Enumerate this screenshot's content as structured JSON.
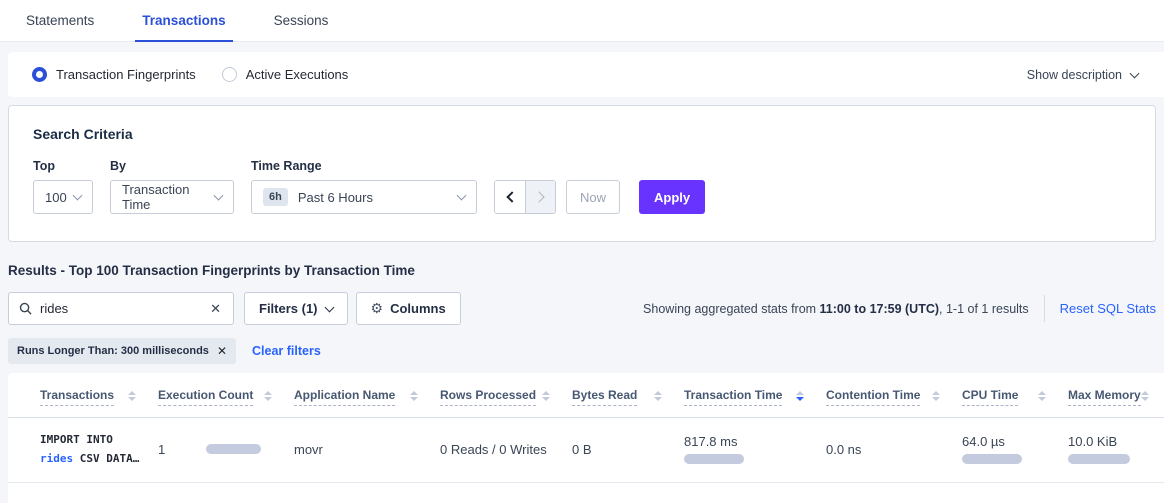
{
  "tabs": {
    "items": [
      {
        "label": "Statements"
      },
      {
        "label": "Transactions"
      },
      {
        "label": "Sessions"
      }
    ],
    "active_index": 1
  },
  "view_toggle": {
    "options": [
      {
        "label": "Transaction Fingerprints",
        "selected": true
      },
      {
        "label": "Active Executions",
        "selected": false
      }
    ],
    "show_description_label": "Show description"
  },
  "search_criteria": {
    "title": "Search Criteria",
    "top_label": "Top",
    "top_value": "100",
    "by_label": "By",
    "by_value": "Transaction Time",
    "time_range_label": "Time Range",
    "time_range_badge": "6h",
    "time_range_value": "Past 6 Hours",
    "now_label": "Now",
    "apply_label": "Apply"
  },
  "results": {
    "title": "Results - Top 100 Transaction Fingerprints by Transaction Time",
    "search_value": "rides",
    "filters_button": "Filters (1)",
    "columns_button": "Columns",
    "stats_prefix": "Showing aggregated stats from ",
    "stats_range": "11:00 to 17:59 (UTC)",
    "stats_suffix": ", 1-1 of 1 results",
    "reset_link": "Reset SQL Stats",
    "filter_chip": "Runs Longer Than: 300 milliseconds",
    "clear_filters": "Clear filters"
  },
  "table": {
    "columns": [
      {
        "label": "Transactions",
        "sort": "none"
      },
      {
        "label": "Execution Count",
        "sort": "none"
      },
      {
        "label": "Application Name",
        "sort": "none"
      },
      {
        "label": "Rows Processed",
        "sort": "none"
      },
      {
        "label": "Bytes Read",
        "sort": "none"
      },
      {
        "label": "Transaction Time",
        "sort": "desc"
      },
      {
        "label": "Contention Time",
        "sort": "none"
      },
      {
        "label": "CPU Time",
        "sort": "none"
      },
      {
        "label": "Max Memory",
        "sort": "none"
      }
    ],
    "row": {
      "sql_line1": "IMPORT INTO",
      "sql_link": "rides",
      "sql_line2_rest": " CSV DATA…",
      "execution_count": "1",
      "execution_count_bar": 55,
      "application_name": "movr",
      "rows_processed": "0 Reads / 0 Writes",
      "bytes_read": "0 B",
      "transaction_time": "817.8 ms",
      "transaction_time_bar": 60,
      "contention_time": "0.0 ns",
      "cpu_time": "64.0 µs",
      "cpu_time_bar": 60,
      "max_memory": "10.0 KiB",
      "max_memory_bar": 62
    }
  },
  "colors": {
    "active_tab_blue": "#2a50d8",
    "link_blue": "#2962ff",
    "apply_purple": "#6933ff",
    "bar_grey": "#c5cbde"
  }
}
